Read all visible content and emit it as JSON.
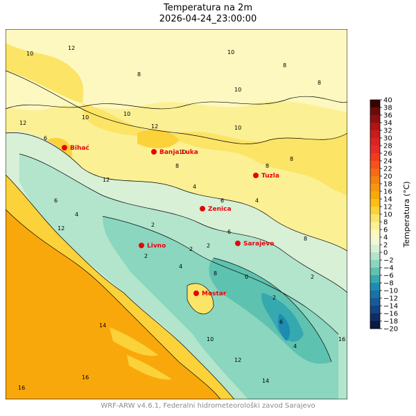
{
  "title": "Temperatura na 2m",
  "subtitle": "2026-04-24_23:00:00",
  "footer": "WRF-ARW v4.6.1, Federalni hidrometeorološki zavod Sarajevo",
  "colorbar": {
    "label": "Temperatura (°C)",
    "ticks": [
      "40",
      "38",
      "36",
      "34",
      "32",
      "30",
      "28",
      "26",
      "24",
      "22",
      "20",
      "18",
      "16",
      "14",
      "12",
      "10",
      "8",
      "6",
      "4",
      "2",
      "0",
      "−2",
      "−4",
      "−6",
      "−8",
      "−10",
      "−12",
      "−14",
      "−16",
      "−18",
      "−20"
    ],
    "colors": [
      "#3a0000",
      "#6e0a0a",
      "#8f0f0f",
      "#b01515",
      "#c81c1c",
      "#dc2323",
      "#ea2a2a",
      "#f23a1e",
      "#f5521a",
      "#f66a16",
      "#f78012",
      "#f8960e",
      "#f9a80b",
      "#fbbf15",
      "#fbd23a",
      "#fbe466",
      "#fcf094",
      "#fdf8bf",
      "#f1f9d4",
      "#d8f0d6",
      "#b3e4cc",
      "#8ad6bf",
      "#5ec2b0",
      "#36a8b0",
      "#1d8cb0",
      "#1872a8",
      "#175a98",
      "#144484",
      "#102c64",
      "#0a1a40"
    ]
  },
  "cities": [
    {
      "name": "Bihać"
    },
    {
      "name": "Banja Luka"
    },
    {
      "name": "Tuzla"
    },
    {
      "name": "Zenica"
    },
    {
      "name": "Livno"
    },
    {
      "name": "Sarajevo"
    },
    {
      "name": "Mostar"
    }
  ],
  "contour_labels": [
    "10",
    "10",
    "8",
    "12",
    "10",
    "8",
    "10",
    "12",
    "8",
    "10",
    "12",
    "8",
    "6",
    "10",
    "8",
    "4",
    "6",
    "4",
    "2",
    "6",
    "2",
    "2",
    "4",
    "2",
    "8",
    "0",
    "2",
    "6",
    "4",
    "8",
    "2",
    "4",
    "6",
    "10",
    "12",
    "14",
    "16",
    "12",
    "10",
    "14",
    "16",
    "12",
    "16",
    "8"
  ]
}
